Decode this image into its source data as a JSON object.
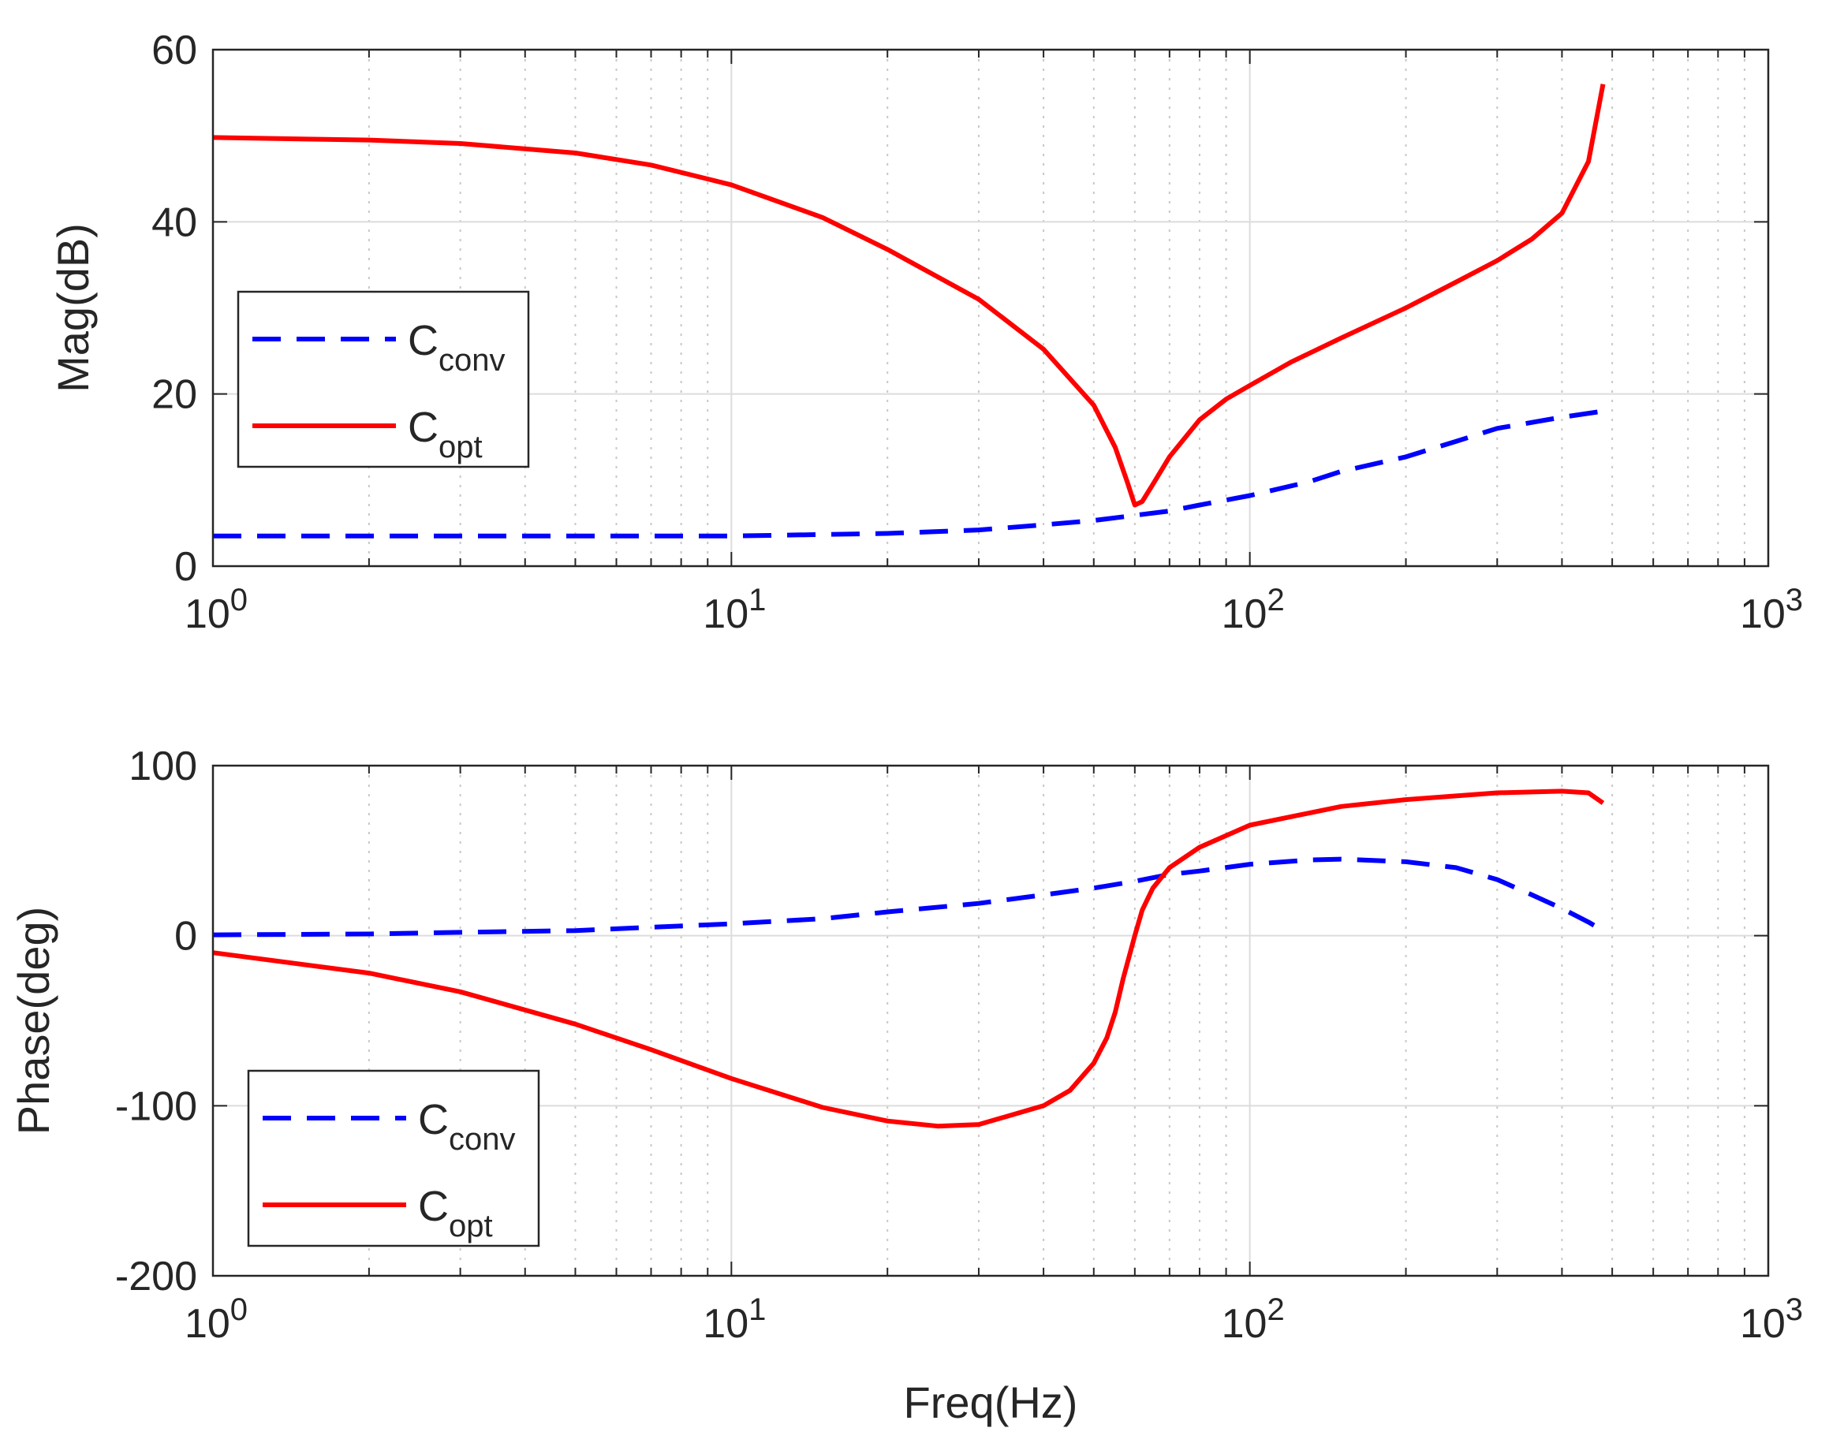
{
  "colors": {
    "conv": "#0000ff",
    "opt": "#ff0000",
    "grid": "#dcdcdc",
    "axis": "#262626"
  },
  "chart_data": [
    {
      "id": "mag",
      "type": "line",
      "xscale": "log",
      "xlim": [
        1,
        1000
      ],
      "ylim": [
        0,
        60
      ],
      "xlabel": "",
      "ylabel": "Mag(dB)",
      "yticks": [
        0,
        20,
        40,
        60
      ],
      "ytick_labels": [
        "0",
        "20",
        "40",
        "60"
      ],
      "xticks": [
        1,
        10,
        100,
        1000
      ],
      "xtick_base": "10",
      "xtick_exps": [
        "0",
        "1",
        "2",
        "3"
      ],
      "legend": {
        "position": "left",
        "entries": [
          {
            "main": "C",
            "sub": "conv"
          },
          {
            "main": "C",
            "sub": "opt"
          }
        ]
      },
      "series": [
        {
          "name": "Cconv",
          "style": "dashed",
          "x": [
            1,
            2,
            5,
            10,
            20,
            30,
            40,
            50,
            60,
            70,
            80,
            100,
            130,
            150,
            200,
            250,
            300,
            400,
            480
          ],
          "y": [
            3.5,
            3.5,
            3.5,
            3.5,
            3.8,
            4.2,
            4.8,
            5.3,
            5.9,
            6.4,
            7.1,
            8.2,
            9.8,
            11,
            12.7,
            14.5,
            16,
            17.3,
            18
          ]
        },
        {
          "name": "Copt",
          "style": "solid",
          "x": [
            1,
            2,
            3,
            5,
            7,
            10,
            15,
            20,
            30,
            40,
            50,
            55,
            58,
            60,
            62,
            65,
            70,
            80,
            90,
            100,
            120,
            150,
            200,
            250,
            300,
            350,
            400,
            450,
            480
          ],
          "y": [
            49.8,
            49.5,
            49.1,
            48,
            46.6,
            44.3,
            40.5,
            36.8,
            31,
            25.2,
            18.7,
            13.8,
            9.8,
            7.1,
            7.5,
            9.5,
            12.7,
            17,
            19.4,
            21,
            23.7,
            26.5,
            30,
            33,
            35.5,
            38,
            41,
            47,
            56
          ]
        }
      ]
    },
    {
      "id": "phase",
      "type": "line",
      "xscale": "log",
      "xlim": [
        1,
        1000
      ],
      "ylim": [
        -200,
        100
      ],
      "xlabel": "Freq(Hz)",
      "ylabel": "Phase(deg)",
      "yticks": [
        -200,
        -100,
        0,
        100
      ],
      "ytick_labels": [
        "-200",
        "-100",
        "0",
        "100"
      ],
      "xticks": [
        1,
        10,
        100,
        1000
      ],
      "xtick_base": "10",
      "xtick_exps": [
        "0",
        "1",
        "2",
        "3"
      ],
      "legend": {
        "position": "bottom-left",
        "entries": [
          {
            "main": "C",
            "sub": "conv"
          },
          {
            "main": "C",
            "sub": "opt"
          }
        ]
      },
      "series": [
        {
          "name": "Cconv",
          "style": "dashed",
          "x": [
            1,
            2,
            3,
            5,
            7,
            10,
            15,
            20,
            30,
            40,
            50,
            60,
            70,
            80,
            100,
            130,
            150,
            200,
            250,
            300,
            350,
            400,
            450,
            480
          ],
          "y": [
            0.5,
            1,
            2,
            3,
            5,
            7,
            10,
            14,
            19,
            24,
            28,
            32,
            36,
            38,
            42,
            44.5,
            45,
            43.5,
            40,
            33,
            24,
            16,
            8,
            3
          ]
        },
        {
          "name": "Copt",
          "style": "solid",
          "x": [
            1,
            2,
            3,
            5,
            7,
            10,
            15,
            20,
            25,
            30,
            40,
            45,
            50,
            53,
            55,
            57,
            60,
            62,
            65,
            70,
            80,
            100,
            150,
            200,
            300,
            400,
            450,
            480
          ],
          "y": [
            -10,
            -22,
            -33,
            -52,
            -67,
            -84,
            -101,
            -109,
            -112,
            -111,
            -100,
            -91,
            -75,
            -60,
            -45,
            -25,
            0,
            15,
            28,
            40,
            52,
            65,
            76,
            80,
            84,
            85,
            84,
            78
          ]
        }
      ]
    }
  ]
}
